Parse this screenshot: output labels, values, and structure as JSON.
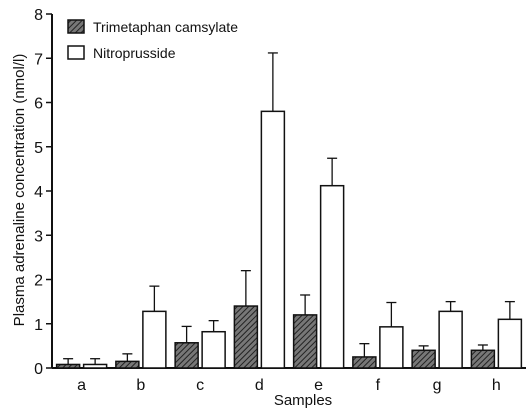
{
  "chart_data": {
    "type": "bar",
    "xlabel": "Samples",
    "ylabel": "Plasma adrenaline concentration (nmol/l)",
    "ylim": [
      0,
      8
    ],
    "yticks": [
      "0",
      "1",
      "2",
      "3",
      "4",
      "5",
      "6",
      "7",
      "8"
    ],
    "categories": [
      "a",
      "b",
      "c",
      "d",
      "e",
      "f",
      "g",
      "h"
    ],
    "legend_position": "top-left",
    "grid": false,
    "series": [
      {
        "name": "Trimetaphan camsylate",
        "fill": "#555555",
        "pattern": "hatched",
        "values": [
          0.08,
          0.15,
          0.57,
          1.4,
          1.2,
          0.25,
          0.4,
          0.4
        ],
        "error": [
          0.13,
          0.17,
          0.37,
          0.8,
          0.45,
          0.3,
          0.1,
          0.12
        ]
      },
      {
        "name": "Nitroprusside",
        "fill": "#ffffff",
        "pattern": "open",
        "values": [
          0.08,
          1.28,
          0.82,
          5.8,
          4.12,
          0.93,
          1.28,
          1.1
        ],
        "error": [
          0.13,
          0.57,
          0.25,
          1.32,
          0.62,
          0.55,
          0.22,
          0.4
        ]
      }
    ]
  }
}
